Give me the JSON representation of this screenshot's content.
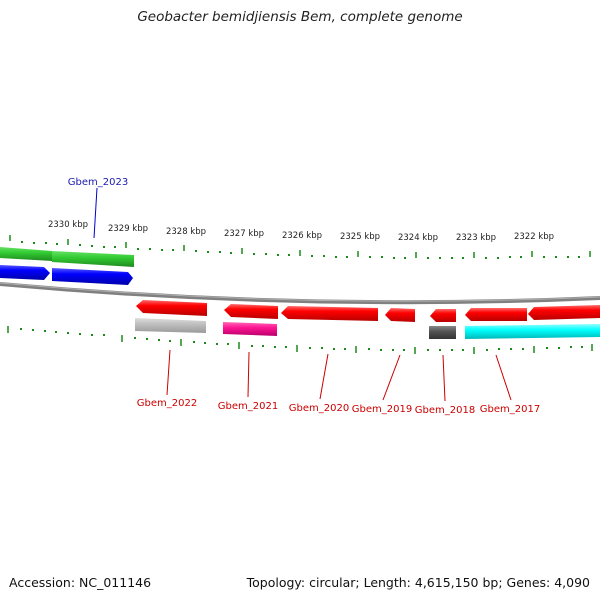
{
  "title": "Geobacter bemidjiensis Bem, complete genome",
  "footer": {
    "accession": "Accession: NC_011146",
    "summary": "Topology: circular; Length: 4,615,150 bp; Genes: 4,090"
  },
  "scale_labels": [
    "2330 kbp",
    "2329 kbp",
    "2328 kbp",
    "2327 kbp",
    "2326 kbp",
    "2325 kbp",
    "2324 kbp",
    "2323 kbp",
    "2322 kbp"
  ],
  "genes": [
    {
      "id": "Gbem_2023",
      "color": "#1a1ab0"
    },
    {
      "id": "Gbem_2022",
      "color": "#cc0000"
    },
    {
      "id": "Gbem_2021",
      "color": "#cc0000"
    },
    {
      "id": "Gbem_2020",
      "color": "#cc0000"
    },
    {
      "id": "Gbem_2019",
      "color": "#cc0000"
    },
    {
      "id": "Gbem_2018",
      "color": "#cc0000"
    },
    {
      "id": "Gbem_2017",
      "color": "#cc0000"
    }
  ],
  "colors": {
    "forward_gene": "#ff0000",
    "reverse_gene": "#0000ff",
    "green_feature": "#33cc33",
    "gray_feature": "#bbbbbb",
    "magenta_feature": "#ff1493",
    "cyan_feature": "#00ffff",
    "dark_feature": "#555555",
    "backbone": "#808080",
    "ticks": "#1a8a1a"
  }
}
